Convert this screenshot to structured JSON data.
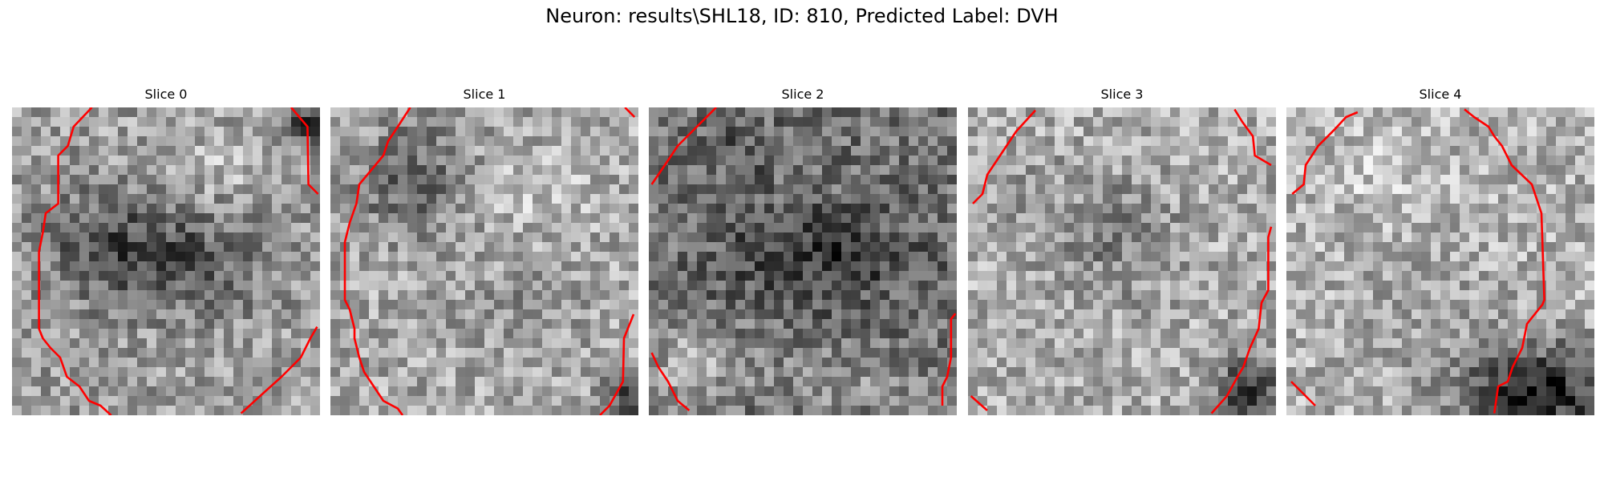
{
  "figure": {
    "title": "Neuron: results\\SHL18, ID: 810, Predicted Label: DVH",
    "contour_color": "#ff0000",
    "colormap": "grayscale",
    "panels": [
      {
        "title": "Slice 0"
      },
      {
        "title": "Slice 1"
      },
      {
        "title": "Slice 2"
      },
      {
        "title": "Slice 3"
      },
      {
        "title": "Slice 4"
      }
    ]
  }
}
